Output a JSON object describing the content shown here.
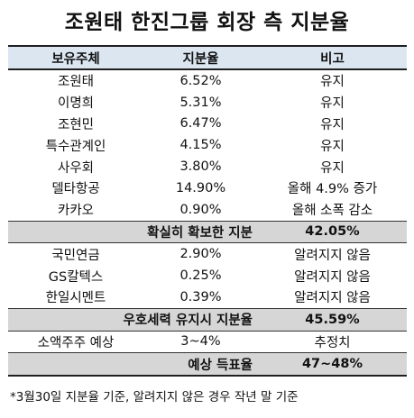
{
  "title": "조원태 한진그룹 회장 측 지분율",
  "header": {
    "holder": "보유주체",
    "stake": "지분율",
    "note": "비고"
  },
  "group1": [
    {
      "holder": "조원태",
      "stake": "6.52%",
      "note": "유지"
    },
    {
      "holder": "이명희",
      "stake": "5.31%",
      "note": "유지"
    },
    {
      "holder": "조현민",
      "stake": "6.47%",
      "note": "유지"
    },
    {
      "holder": "특수관계인",
      "stake": "4.15%",
      "note": "유지"
    },
    {
      "holder": "사우회",
      "stake": "3.80%",
      "note": "유지"
    },
    {
      "holder": "델타항공",
      "stake": "14.90%",
      "note": "올해 4.9% 증가"
    },
    {
      "holder": "카카오",
      "stake": "0.90%",
      "note": "올해 소폭 감소"
    }
  ],
  "sum1": {
    "label": "확실히 확보한 지분",
    "value": "42.05%"
  },
  "group2": [
    {
      "holder": "국민연금",
      "stake": "2.90%",
      "note": "알려지지 않음"
    },
    {
      "holder": "GS칼텍스",
      "stake": "0.25%",
      "note": "알려지지 않음"
    },
    {
      "holder": "한일시멘트",
      "stake": "0.39%",
      "note": "알려지지 않음"
    }
  ],
  "sum2": {
    "label": "우호세력 유지시 지분율",
    "value": "45.59%"
  },
  "minority": {
    "holder": "소액주주 예상",
    "stake": "3~4%",
    "note": "추정치"
  },
  "sum3": {
    "label": "예상 득표율",
    "value": "47~48%"
  },
  "footnote": "*3월30일 지분율 기준, 알려지지 않은 경우 작년 말 기준"
}
